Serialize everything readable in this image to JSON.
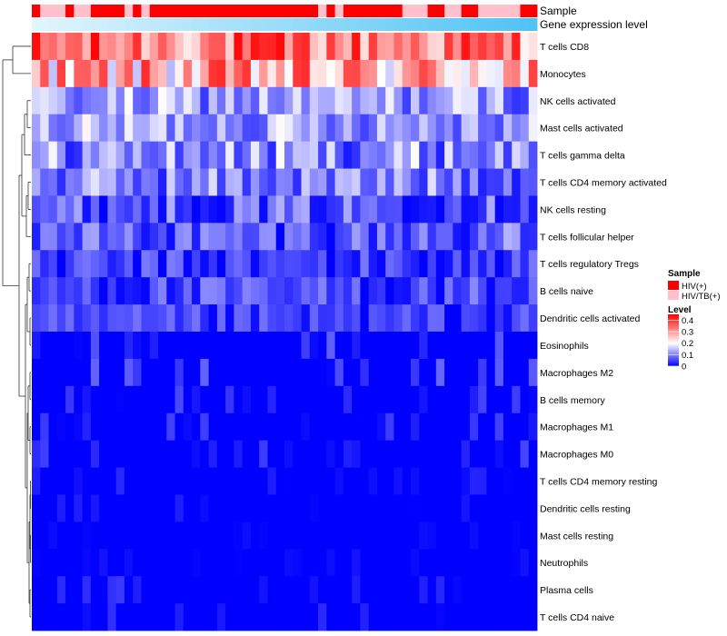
{
  "chart_data": {
    "type": "heatmap",
    "annotation_tracks": [
      {
        "label": "Sample"
      },
      {
        "label": "Gene expression level"
      }
    ],
    "sample_groups": [
      {
        "name": "HIV(+)",
        "color": "#ff0000"
      },
      {
        "name": "HIV/TB(+)",
        "color": "#ffc0cb"
      }
    ],
    "sample_annotation": [
      0,
      1,
      1,
      1,
      0,
      1,
      1,
      0,
      0,
      0,
      0,
      1,
      0,
      1,
      0,
      0,
      0,
      0,
      0,
      0,
      0,
      0,
      0,
      0,
      0,
      0,
      0,
      0,
      0,
      0,
      0,
      0,
      0,
      0,
      1,
      0,
      1,
      0,
      0,
      0,
      0,
      0,
      0,
      0,
      1,
      1,
      1,
      0,
      0,
      1,
      1,
      0,
      0,
      1,
      1,
      1,
      1,
      1,
      0,
      0
    ],
    "gene_expression_level_range": [
      0,
      1
    ],
    "rows": [
      "T cells CD8",
      "Monocytes",
      "NK cells activated",
      "Mast cells activated",
      "T cells gamma delta",
      "T cells CD4 memory activated",
      "NK cells resting",
      "T cells follicular helper",
      "T cells regulatory  Tregs",
      "B cells naive",
      "Dendritic cells activated",
      "Eosinophils",
      "Macrophages M2",
      "B cells memory",
      "Macrophages M1",
      "Macrophages M0",
      "T cells CD4 memory resting",
      "Dendritic cells resting",
      "Mast cells resting",
      "Neutrophils",
      "Plasma cells",
      "T cells CD4 naive"
    ],
    "num_columns": 60,
    "row_mean_levels": [
      0.33,
      0.27,
      0.12,
      0.13,
      0.11,
      0.1,
      0.07,
      0.07,
      0.04,
      0.05,
      0.04,
      0.03,
      0.03,
      0.02,
      0.015,
      0.015,
      0.008,
      0.005,
      0.004,
      0.003,
      0.012,
      0.008
    ],
    "row_level_spread": [
      0.12,
      0.14,
      0.08,
      0.08,
      0.09,
      0.08,
      0.07,
      0.07,
      0.06,
      0.06,
      0.05,
      0.05,
      0.05,
      0.04,
      0.04,
      0.04,
      0.025,
      0.02,
      0.015,
      0.015,
      0.035,
      0.03
    ],
    "level_range": [
      0,
      0.45
    ],
    "colorscale": {
      "low": "#0000ff",
      "mid": "#ffffff",
      "high": "#ff0000",
      "mid_value": 0.2
    },
    "legend": {
      "sample_title": "Sample",
      "level_title": "Level",
      "level_ticks": [
        "0.4",
        "0.3",
        "0.2",
        "0.1",
        "0"
      ],
      "level_tick_values": [
        0.4,
        0.3,
        0.2,
        0.1,
        0
      ],
      "position": "right"
    },
    "dendrogram": "rows"
  }
}
